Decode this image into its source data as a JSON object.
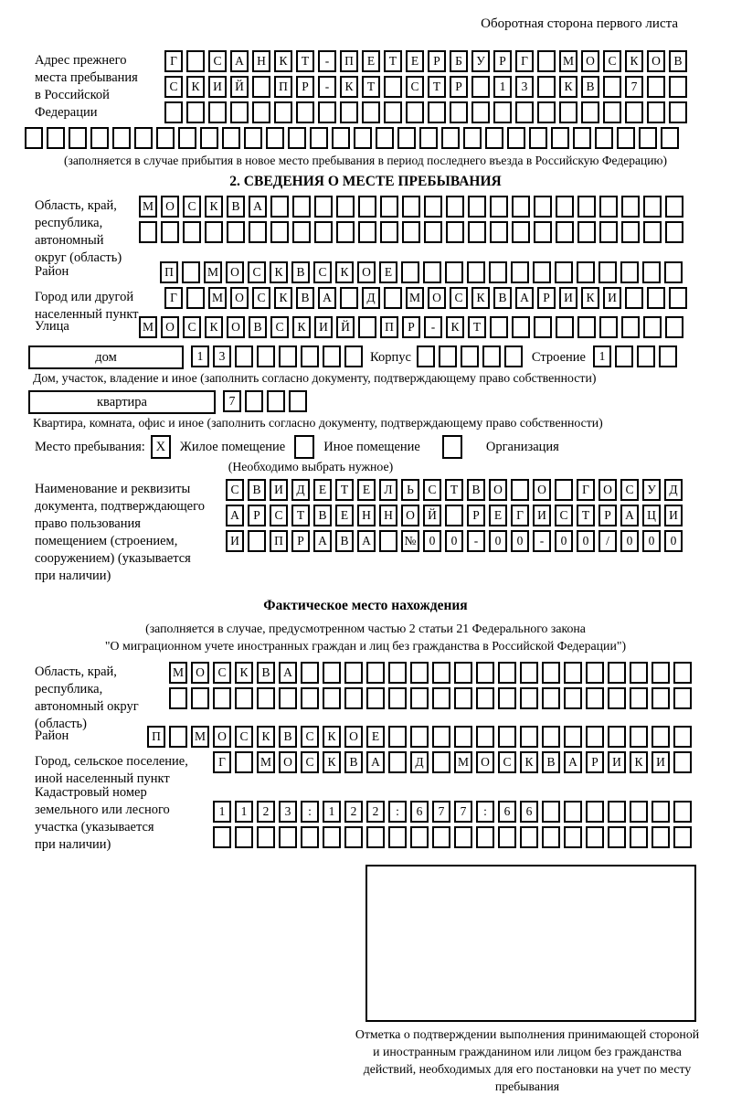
{
  "page": {
    "title_right": "Оборотная сторона первого листа"
  },
  "prev_address": {
    "label": "Адрес прежнего\nместа пребывания\nв Российской\nФедерации",
    "rows": [
      {
        "text": "Г САНКТ-ПЕТЕРБУРГ МОСКОВ",
        "len": 24
      },
      {
        "text": "СКИЙ ПР-КТ СТР 13 КВ 7",
        "len": 24
      },
      {
        "text": "",
        "len": 24
      },
      {
        "text": "",
        "len": 30
      }
    ],
    "note": "(заполняется в случае прибытия в новое место пребывания в период последнего въезда в Российскую Федерацию)"
  },
  "section2": {
    "title": "2. СВЕДЕНИЯ О МЕСТЕ ПРЕБЫВАНИЯ",
    "region": {
      "label": "Область, край,\nреспублика,\nавтономный\nокруг (область)",
      "rows": [
        {
          "text": "МОСКВА",
          "len": 25
        },
        {
          "text": "",
          "len": 25
        }
      ]
    },
    "district": {
      "label": "Район",
      "row": {
        "text": "П МОСКВСКОЕ",
        "len": 24
      }
    },
    "city": {
      "label": "Город или другой\nнаселенный пункт",
      "row": {
        "text": "Г МОСКВА Д МОСКВАРИКИ",
        "len": 24
      }
    },
    "street": {
      "label": "Улица",
      "row": {
        "text": "МОСКОВСКИЙ ПР-КТ",
        "len": 25
      }
    },
    "house": {
      "box_label": "дом",
      "cells": {
        "text": "13",
        "len": 8
      },
      "korpus_label": "Корпус",
      "korpus_cells": {
        "text": "",
        "len": 5
      },
      "stroenie_label": "Строение",
      "stroenie_cells": {
        "text": "1",
        "len": 4
      },
      "caption": "Дом, участок, владение и иное (заполнить согласно документу, подтверждающему право собственности)"
    },
    "apartment": {
      "box_label": "квартира",
      "cells": {
        "text": "7",
        "len": 4
      },
      "caption": "Квартира, комната, офис и иное (заполнить согласно документу, подтверждающему право собственности)"
    },
    "stay": {
      "label": "Место пребывания:",
      "options": [
        {
          "mark": "X",
          "label": "Жилое помещение"
        },
        {
          "mark": "",
          "label": "Иное помещение"
        },
        {
          "mark": "",
          "label": "Организация"
        }
      ],
      "note": "(Необходимо выбрать нужное)"
    },
    "document": {
      "label": "Наименование и реквизиты\nдокумента, подтверждающего\nправо пользования\nпомещением (строением,\nсооружением) (указывается\nпри наличии)",
      "rows": [
        {
          "text": "СВИДЕТЕЛЬСТВО О ГОСУД",
          "len": 21
        },
        {
          "text": "АРСТВЕННОЙ РЕГИСТРАЦИ",
          "len": 21
        },
        {
          "text": "И ПРАВА №00-00-00/000",
          "len": 21
        }
      ]
    }
  },
  "actual_location": {
    "title": "Фактическое место нахождения",
    "note_line1": "(заполняется в случае, предусмотренном частью 2 статьи 21 Федерального закона",
    "note_line2": "\"О миграционном учете иностранных граждан и лиц без гражданства в Российской Федерации\")",
    "region": {
      "label": "Область, край,\nреспублика,\nавтономный округ\n(область)",
      "rows": [
        {
          "text": "МОСКВА",
          "len": 24
        },
        {
          "text": "",
          "len": 24
        }
      ]
    },
    "district": {
      "label": "Район",
      "row": {
        "text": "П МОСКВСКОЕ",
        "len": 25
      }
    },
    "city": {
      "label": "Город, сельское поселение,\nиной населенный пункт",
      "row": {
        "text": "Г МОСКВА Д МОСКВАРИКИ",
        "len": 22
      }
    },
    "cadastral": {
      "label": "Кадастровый номер\nземельного или лесного\nучастка (указывается\nпри наличии)",
      "rows": [
        {
          "text": "1123:122:677:66",
          "len": 22
        },
        {
          "text": "",
          "len": 22
        }
      ]
    },
    "stamp_caption": "Отметка о подтверждении выполнения принимающей стороной и иностранным гражданином или лицом без гражданства действий, необходимых для его постановки на учет по месту пребывания"
  }
}
